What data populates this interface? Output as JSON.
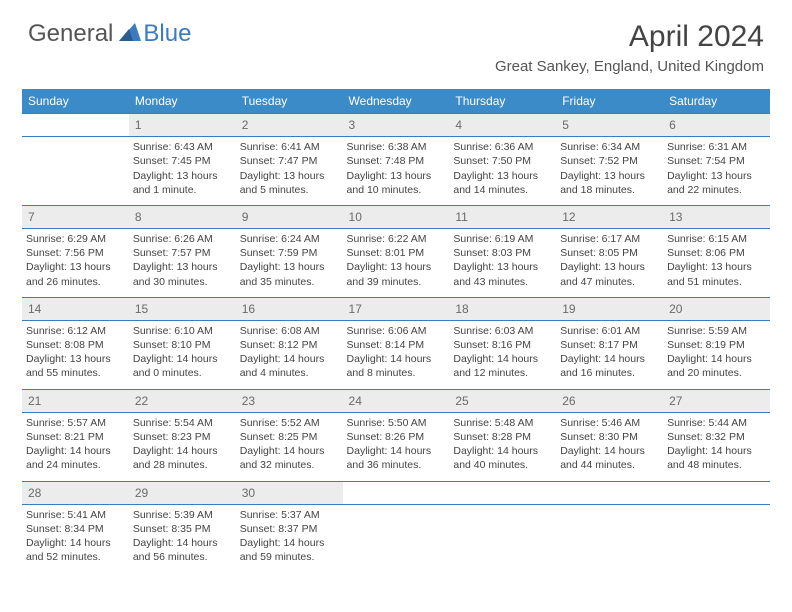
{
  "logo": {
    "part1": "General",
    "part2": "Blue"
  },
  "title": "April 2024",
  "location": "Great Sankey, England, United Kingdom",
  "colors": {
    "header_bg": "#3b8bc9",
    "accent": "#3b7bbf",
    "daynum_bg": "#ececec",
    "text": "#444444"
  },
  "dayHeaders": [
    "Sunday",
    "Monday",
    "Tuesday",
    "Wednesday",
    "Thursday",
    "Friday",
    "Saturday"
  ],
  "weeks": [
    [
      {
        "n": "",
        "lines": []
      },
      {
        "n": "1",
        "lines": [
          "Sunrise: 6:43 AM",
          "Sunset: 7:45 PM",
          "Daylight: 13 hours and 1 minute."
        ]
      },
      {
        "n": "2",
        "lines": [
          "Sunrise: 6:41 AM",
          "Sunset: 7:47 PM",
          "Daylight: 13 hours and 5 minutes."
        ]
      },
      {
        "n": "3",
        "lines": [
          "Sunrise: 6:38 AM",
          "Sunset: 7:48 PM",
          "Daylight: 13 hours and 10 minutes."
        ]
      },
      {
        "n": "4",
        "lines": [
          "Sunrise: 6:36 AM",
          "Sunset: 7:50 PM",
          "Daylight: 13 hours and 14 minutes."
        ]
      },
      {
        "n": "5",
        "lines": [
          "Sunrise: 6:34 AM",
          "Sunset: 7:52 PM",
          "Daylight: 13 hours and 18 minutes."
        ]
      },
      {
        "n": "6",
        "lines": [
          "Sunrise: 6:31 AM",
          "Sunset: 7:54 PM",
          "Daylight: 13 hours and 22 minutes."
        ]
      }
    ],
    [
      {
        "n": "7",
        "lines": [
          "Sunrise: 6:29 AM",
          "Sunset: 7:56 PM",
          "Daylight: 13 hours and 26 minutes."
        ]
      },
      {
        "n": "8",
        "lines": [
          "Sunrise: 6:26 AM",
          "Sunset: 7:57 PM",
          "Daylight: 13 hours and 30 minutes."
        ]
      },
      {
        "n": "9",
        "lines": [
          "Sunrise: 6:24 AM",
          "Sunset: 7:59 PM",
          "Daylight: 13 hours and 35 minutes."
        ]
      },
      {
        "n": "10",
        "lines": [
          "Sunrise: 6:22 AM",
          "Sunset: 8:01 PM",
          "Daylight: 13 hours and 39 minutes."
        ]
      },
      {
        "n": "11",
        "lines": [
          "Sunrise: 6:19 AM",
          "Sunset: 8:03 PM",
          "Daylight: 13 hours and 43 minutes."
        ]
      },
      {
        "n": "12",
        "lines": [
          "Sunrise: 6:17 AM",
          "Sunset: 8:05 PM",
          "Daylight: 13 hours and 47 minutes."
        ]
      },
      {
        "n": "13",
        "lines": [
          "Sunrise: 6:15 AM",
          "Sunset: 8:06 PM",
          "Daylight: 13 hours and 51 minutes."
        ]
      }
    ],
    [
      {
        "n": "14",
        "lines": [
          "Sunrise: 6:12 AM",
          "Sunset: 8:08 PM",
          "Daylight: 13 hours and 55 minutes."
        ]
      },
      {
        "n": "15",
        "lines": [
          "Sunrise: 6:10 AM",
          "Sunset: 8:10 PM",
          "Daylight: 14 hours and 0 minutes."
        ]
      },
      {
        "n": "16",
        "lines": [
          "Sunrise: 6:08 AM",
          "Sunset: 8:12 PM",
          "Daylight: 14 hours and 4 minutes."
        ]
      },
      {
        "n": "17",
        "lines": [
          "Sunrise: 6:06 AM",
          "Sunset: 8:14 PM",
          "Daylight: 14 hours and 8 minutes."
        ]
      },
      {
        "n": "18",
        "lines": [
          "Sunrise: 6:03 AM",
          "Sunset: 8:16 PM",
          "Daylight: 14 hours and 12 minutes."
        ]
      },
      {
        "n": "19",
        "lines": [
          "Sunrise: 6:01 AM",
          "Sunset: 8:17 PM",
          "Daylight: 14 hours and 16 minutes."
        ]
      },
      {
        "n": "20",
        "lines": [
          "Sunrise: 5:59 AM",
          "Sunset: 8:19 PM",
          "Daylight: 14 hours and 20 minutes."
        ]
      }
    ],
    [
      {
        "n": "21",
        "lines": [
          "Sunrise: 5:57 AM",
          "Sunset: 8:21 PM",
          "Daylight: 14 hours and 24 minutes."
        ]
      },
      {
        "n": "22",
        "lines": [
          "Sunrise: 5:54 AM",
          "Sunset: 8:23 PM",
          "Daylight: 14 hours and 28 minutes."
        ]
      },
      {
        "n": "23",
        "lines": [
          "Sunrise: 5:52 AM",
          "Sunset: 8:25 PM",
          "Daylight: 14 hours and 32 minutes."
        ]
      },
      {
        "n": "24",
        "lines": [
          "Sunrise: 5:50 AM",
          "Sunset: 8:26 PM",
          "Daylight: 14 hours and 36 minutes."
        ]
      },
      {
        "n": "25",
        "lines": [
          "Sunrise: 5:48 AM",
          "Sunset: 8:28 PM",
          "Daylight: 14 hours and 40 minutes."
        ]
      },
      {
        "n": "26",
        "lines": [
          "Sunrise: 5:46 AM",
          "Sunset: 8:30 PM",
          "Daylight: 14 hours and 44 minutes."
        ]
      },
      {
        "n": "27",
        "lines": [
          "Sunrise: 5:44 AM",
          "Sunset: 8:32 PM",
          "Daylight: 14 hours and 48 minutes."
        ]
      }
    ],
    [
      {
        "n": "28",
        "lines": [
          "Sunrise: 5:41 AM",
          "Sunset: 8:34 PM",
          "Daylight: 14 hours and 52 minutes."
        ]
      },
      {
        "n": "29",
        "lines": [
          "Sunrise: 5:39 AM",
          "Sunset: 8:35 PM",
          "Daylight: 14 hours and 56 minutes."
        ]
      },
      {
        "n": "30",
        "lines": [
          "Sunrise: 5:37 AM",
          "Sunset: 8:37 PM",
          "Daylight: 14 hours and 59 minutes."
        ]
      },
      {
        "n": "",
        "lines": []
      },
      {
        "n": "",
        "lines": []
      },
      {
        "n": "",
        "lines": []
      },
      {
        "n": "",
        "lines": []
      }
    ]
  ]
}
